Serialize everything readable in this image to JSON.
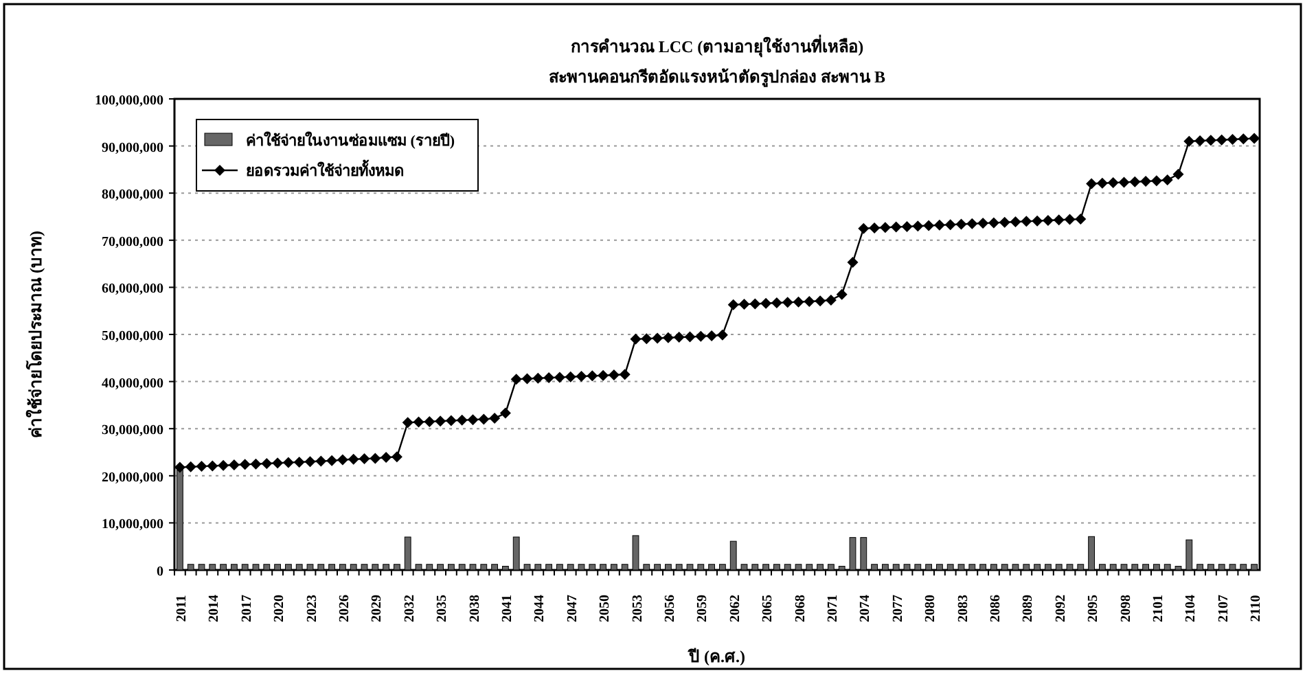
{
  "chart_data": {
    "type": "bar",
    "title": "การคำนวณ LCC (ตามอายุใช้งานที่เหลือ)",
    "subtitle": "สะพานคอนกรีตอัดแรงหน้าตัดรูปกล่อง สะพาน B",
    "xlabel": "ปี (ค.ศ.)",
    "ylabel": "ค่าใช้จ่ายโดยประมาณ (บาท)",
    "categories": [
      "2011",
      null,
      null,
      "2014",
      null,
      null,
      "2017",
      null,
      null,
      "2020",
      null,
      null,
      "2023",
      null,
      null,
      "2026",
      null,
      null,
      "2029",
      null,
      null,
      "2032",
      null,
      null,
      "2035",
      null,
      null,
      "2038",
      null,
      null,
      "2041",
      null,
      null,
      "2044",
      null,
      null,
      "2047",
      null,
      null,
      "2050",
      null,
      null,
      "2053",
      null,
      null,
      "2056",
      null,
      null,
      "2059",
      null,
      null,
      "2062",
      null,
      null,
      "2065",
      null,
      null,
      "2068",
      null,
      null,
      "2071",
      null,
      null,
      "2074",
      null,
      null,
      "2077",
      null,
      null,
      "2080",
      null,
      null,
      "2083",
      null,
      null,
      "2086",
      null,
      null,
      "2089",
      null,
      null,
      "2092",
      null,
      null,
      "2095",
      null,
      null,
      "2098",
      null,
      null,
      "2101",
      null,
      null,
      "2104",
      null,
      null,
      "2107",
      null,
      null,
      "2110"
    ],
    "series": [
      {
        "name": "ค่าใช้จ่ายในงานซ่อมแซม (รายปี)",
        "color": "#666666",
        "values": [
          22000000,
          1200000,
          1200000,
          1200000,
          1200000,
          1200000,
          1200000,
          1200000,
          1200000,
          1200000,
          1200000,
          1200000,
          1200000,
          1200000,
          1200000,
          1200000,
          1200000,
          1200000,
          1200000,
          1200000,
          1200000,
          7000000,
          1200000,
          1200000,
          1200000,
          1200000,
          1200000,
          1200000,
          1200000,
          1200000,
          800000,
          7000000,
          1200000,
          1200000,
          1200000,
          1200000,
          1200000,
          1200000,
          1200000,
          1200000,
          1200000,
          1200000,
          7300000,
          1200000,
          1200000,
          1200000,
          1200000,
          1200000,
          1200000,
          1200000,
          1200000,
          6100000,
          1200000,
          1200000,
          1200000,
          1200000,
          1200000,
          1200000,
          1200000,
          1200000,
          1200000,
          800000,
          6900000,
          6900000,
          1200000,
          1200000,
          1200000,
          1200000,
          1200000,
          1200000,
          1200000,
          1200000,
          1200000,
          1200000,
          1200000,
          1200000,
          1200000,
          1200000,
          1200000,
          1200000,
          1200000,
          1200000,
          1200000,
          1200000,
          7100000,
          1200000,
          1200000,
          1200000,
          1200000,
          1200000,
          1200000,
          1200000,
          800000,
          6400000,
          1200000,
          1200000,
          1200000,
          1200000,
          1200000,
          1200000
        ]
      },
      {
        "name": "ยอดรวมค่าใช้จ่ายทั้งหมด",
        "type": "line",
        "color": "#000000",
        "marker": "diamond",
        "values": [
          21800000,
          21900000,
          22000000,
          22100000,
          22200000,
          22300000,
          22400000,
          22500000,
          22600000,
          22700000,
          22800000,
          22900000,
          23000000,
          23100000,
          23200000,
          23400000,
          23500000,
          23600000,
          23700000,
          23900000,
          24000000,
          31300000,
          31400000,
          31500000,
          31600000,
          31700000,
          31800000,
          31900000,
          32000000,
          32200000,
          33300000,
          40500000,
          40600000,
          40700000,
          40800000,
          40900000,
          41000000,
          41100000,
          41200000,
          41300000,
          41400000,
          41500000,
          49000000,
          49100000,
          49200000,
          49300000,
          49400000,
          49500000,
          49600000,
          49700000,
          49900000,
          56300000,
          56400000,
          56500000,
          56600000,
          56700000,
          56800000,
          56900000,
          57000000,
          57100000,
          57300000,
          58500000,
          65300000,
          72500000,
          72600000,
          72700000,
          72800000,
          72900000,
          73000000,
          73100000,
          73200000,
          73300000,
          73400000,
          73500000,
          73600000,
          73700000,
          73800000,
          73900000,
          74000000,
          74100000,
          74200000,
          74300000,
          74400000,
          74500000,
          82000000,
          82100000,
          82200000,
          82300000,
          82400000,
          82500000,
          82600000,
          82800000,
          84000000,
          91000000,
          91100000,
          91200000,
          91300000,
          91400000,
          91500000,
          91600000
        ]
      }
    ],
    "ylim": [
      0,
      100000000
    ],
    "yticks": [
      0,
      {
        "value": 10000000,
        "label": "10,000,000"
      },
      {
        "value": 20000000,
        "label": "20,000,000"
      },
      {
        "value": 30000000,
        "label": "30,000,000"
      },
      {
        "value": 40000000,
        "label": "40,000,000"
      },
      {
        "value": 50000000,
        "label": "50,000,000"
      },
      {
        "value": 60000000,
        "label": "60,000,000"
      },
      {
        "value": 70000000,
        "label": "70,000,000"
      },
      {
        "value": 80000000,
        "label": "80,000,000"
      },
      {
        "value": 90000000,
        "label": "90,000,000"
      },
      {
        "value": 100000000,
        "label": "100,000,000"
      }
    ],
    "grid": "y",
    "legend": "top left"
  }
}
